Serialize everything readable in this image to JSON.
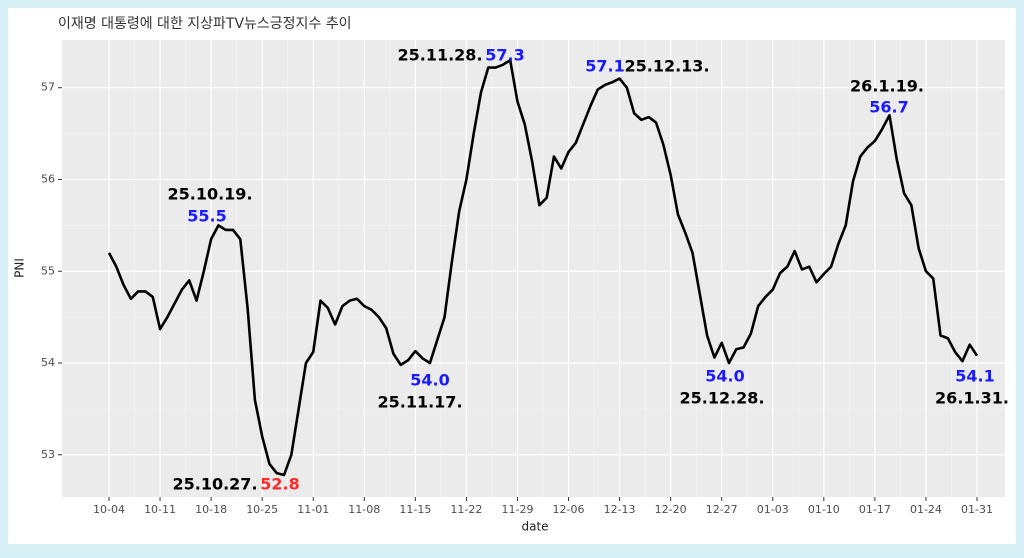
{
  "chart_data": {
    "type": "line",
    "title": "이재명 대통령에 대한 지상파TV뉴스긍정지수 추이",
    "x_label": "date",
    "y_label": "PNI",
    "categories": [
      "10-04",
      "10-05",
      "10-06",
      "10-07",
      "10-08",
      "10-09",
      "10-10",
      "10-11",
      "10-12",
      "10-13",
      "10-14",
      "10-15",
      "10-16",
      "10-17",
      "10-18",
      "10-19",
      "10-20",
      "10-21",
      "10-22",
      "10-23",
      "10-24",
      "10-25",
      "10-26",
      "10-27",
      "10-28",
      "10-29",
      "10-30",
      "10-31",
      "11-01",
      "11-02",
      "11-03",
      "11-04",
      "11-05",
      "11-06",
      "11-07",
      "11-08",
      "11-09",
      "11-10",
      "11-11",
      "11-12",
      "11-13",
      "11-14",
      "11-15",
      "11-16",
      "11-17",
      "11-18",
      "11-19",
      "11-20",
      "11-21",
      "11-22",
      "11-23",
      "11-24",
      "11-25",
      "11-26",
      "11-27",
      "11-28",
      "11-29",
      "11-30",
      "12-01",
      "12-02",
      "12-03",
      "12-04",
      "12-05",
      "12-06",
      "12-07",
      "12-08",
      "12-09",
      "12-10",
      "12-11",
      "12-12",
      "12-13",
      "12-14",
      "12-15",
      "12-16",
      "12-17",
      "12-18",
      "12-19",
      "12-20",
      "12-21",
      "12-22",
      "12-23",
      "12-24",
      "12-25",
      "12-26",
      "12-27",
      "12-28",
      "12-29",
      "12-30",
      "12-31",
      "01-01",
      "01-02",
      "01-03",
      "01-04",
      "01-05",
      "01-06",
      "01-07",
      "01-08",
      "01-09",
      "01-10",
      "01-11",
      "01-12",
      "01-13",
      "01-14",
      "01-15",
      "01-16",
      "01-17",
      "01-18",
      "01-19",
      "01-20",
      "01-21",
      "01-22",
      "01-23",
      "01-24",
      "01-25",
      "01-26",
      "01-27",
      "01-28",
      "01-29",
      "01-30",
      "01-31"
    ],
    "series": [
      {
        "name": "PNI",
        "color": "#000000",
        "values": [
          55.2,
          55.05,
          54.85,
          54.7,
          54.78,
          54.78,
          54.72,
          54.37,
          54.5,
          54.65,
          54.8,
          54.9,
          54.68,
          55.0,
          55.35,
          55.5,
          55.45,
          55.45,
          55.35,
          54.6,
          53.6,
          53.2,
          52.9,
          52.8,
          52.78,
          53.0,
          53.5,
          54.0,
          54.12,
          54.68,
          54.6,
          54.42,
          54.62,
          54.68,
          54.7,
          54.62,
          54.58,
          54.5,
          54.38,
          54.1,
          53.98,
          54.03,
          54.13,
          54.05,
          54.0,
          54.25,
          54.5,
          55.1,
          55.65,
          56.0,
          56.5,
          56.95,
          57.22,
          57.22,
          57.25,
          57.3,
          56.85,
          56.6,
          56.2,
          55.72,
          55.8,
          56.25,
          56.12,
          56.3,
          56.4,
          56.6,
          56.8,
          56.98,
          57.03,
          57.06,
          57.1,
          57.0,
          56.72,
          56.65,
          56.68,
          56.62,
          56.38,
          56.05,
          55.62,
          55.42,
          55.2,
          54.75,
          54.3,
          54.06,
          54.22,
          54.0,
          54.15,
          54.17,
          54.32,
          54.62,
          54.72,
          54.8,
          54.98,
          55.05,
          55.22,
          55.02,
          55.05,
          54.88,
          54.97,
          55.05,
          55.3,
          55.5,
          55.98,
          56.25,
          56.35,
          56.42,
          56.55,
          56.7,
          56.22,
          55.85,
          55.72,
          55.25,
          55.0,
          54.92,
          54.3,
          54.27,
          54.12,
          54.02,
          54.2,
          54.08
        ]
      }
    ],
    "xticks": [
      "10-04",
      "10-11",
      "10-18",
      "10-25",
      "11-01",
      "11-08",
      "11-15",
      "11-22",
      "11-29",
      "12-06",
      "12-13",
      "12-20",
      "12-27",
      "01-03",
      "01-10",
      "01-17",
      "01-24",
      "01-31"
    ],
    "ylim": [
      52.54,
      57.52
    ],
    "yticks": [
      53,
      54,
      55,
      56,
      57
    ],
    "grid": true,
    "annotations": [
      {
        "x": "10-19",
        "date": "25.10.19.",
        "value_label": "55.5",
        "color": "#1a1aff"
      },
      {
        "x": "10-27",
        "date": "25.10.27.",
        "value_label": "52.8",
        "color": "#ff2a2a"
      },
      {
        "x": "11-17",
        "date": "25.11.17.",
        "value_label": "54.0",
        "color": "#1a1aff"
      },
      {
        "x": "11-28",
        "date": "25.11.28.",
        "value_label": "57.3",
        "color": "#1a1aff"
      },
      {
        "x": "12-13",
        "date": "25.12.13.",
        "value_label": "57.1",
        "color": "#1a1aff"
      },
      {
        "x": "12-28",
        "date": "25.12.28.",
        "value_label": "54.0",
        "color": "#1a1aff"
      },
      {
        "x": "01-19",
        "date": "26.1.19.",
        "value_label": "56.7",
        "color": "#1a1aff"
      },
      {
        "x": "01-31",
        "date": "26.1.31.",
        "value_label": "54.1",
        "color": "#1a1aff"
      }
    ]
  }
}
